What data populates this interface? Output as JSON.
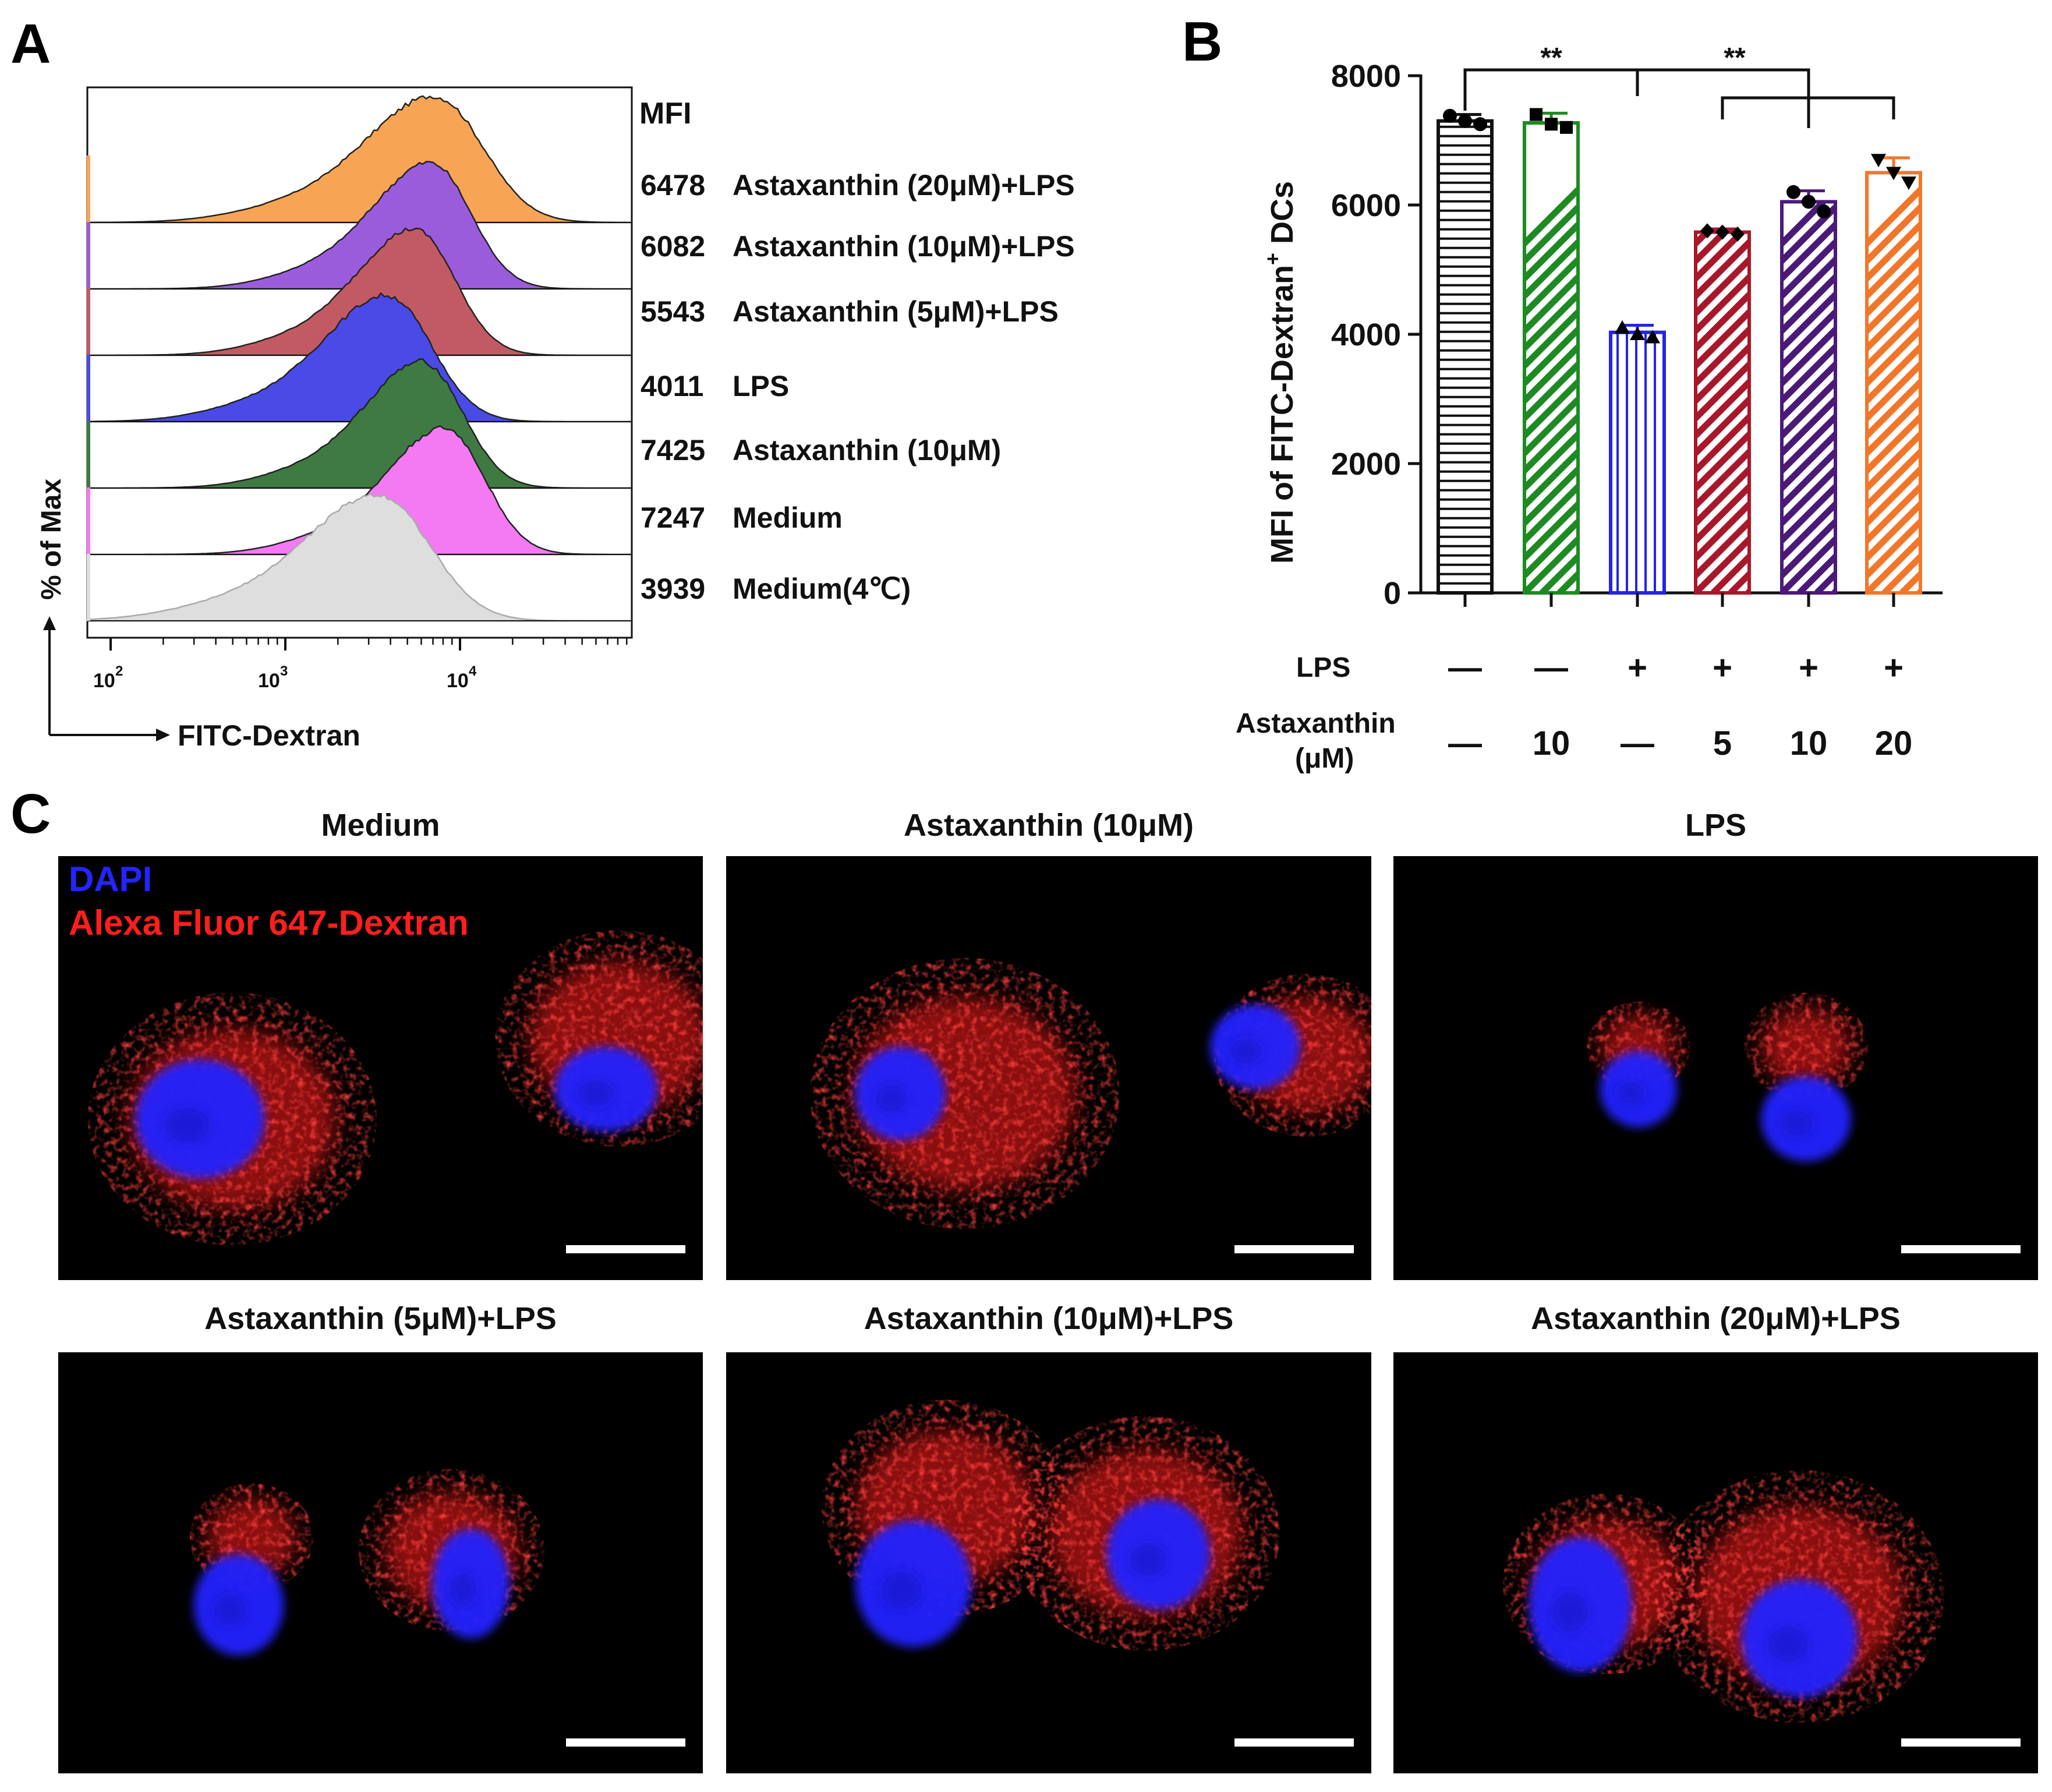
{
  "panels": {
    "a": "A",
    "b": "B",
    "c": "C"
  },
  "panel_a": {
    "mfi_header": "MFI",
    "y_axis_label": "% of Max",
    "x_axis_label": "FITC-Dextran",
    "x_ticks": [
      "2",
      "3",
      "4"
    ],
    "x_tick_base": "10",
    "rows": [
      {
        "mfi": "6478",
        "label": "Astaxanthin (20μM)+LPS",
        "color": "#f7a454"
      },
      {
        "mfi": "6082",
        "label": "Astaxanthin (10μM)+LPS",
        "color": "#9b5cdc"
      },
      {
        "mfi": "5543",
        "label": "Astaxanthin (5μM)+LPS",
        "color": "#c25a64"
      },
      {
        "mfi": "4011",
        "label": "LPS",
        "color": "#4a4ae6"
      },
      {
        "mfi": "7425",
        "label": "Astaxanthin (10μM)",
        "color": "#3f7a42"
      },
      {
        "mfi": "7247",
        "label": "Medium",
        "color": "#f37af3"
      },
      {
        "mfi": "3939",
        "label": "Medium(4℃)",
        "color": "#dedede"
      }
    ]
  },
  "chart_data": {
    "type": "bar",
    "title": "",
    "ylabel_main": "MFI of FITC-Dextran",
    "ylabel_sup": "+",
    "ylabel_tail": " DCs",
    "ylim": [
      0,
      8000
    ],
    "y_ticks": [
      0,
      2000,
      4000,
      6000,
      8000
    ],
    "values": [
      7300,
      7270,
      4030,
      5580,
      6050,
      6500
    ],
    "errors": [
      100,
      150,
      110,
      50,
      170,
      230
    ],
    "points": [
      [
        7380,
        7300,
        7250
      ],
      [
        7400,
        7250,
        7200
      ],
      [
        4100,
        4000,
        3950
      ],
      [
        5600,
        5580,
        5550
      ],
      [
        6200,
        6050,
        5900
      ],
      [
        6700,
        6500,
        6350
      ]
    ],
    "colors": [
      "#111111",
      "#1e8a23",
      "#2424e8",
      "#a8182a",
      "#4b1a78",
      "#f2762a"
    ],
    "patterns": [
      "horizontal",
      "diagonal",
      "vertical",
      "diagonal",
      "diagonal",
      "diagonal"
    ],
    "markers": [
      "circle",
      "square",
      "triangle",
      "diamond",
      "circle",
      "triangle-down"
    ],
    "significance": [
      "**",
      "**"
    ],
    "row_labels": [
      "LPS",
      "Astaxanthin",
      "(μM)"
    ],
    "lps": [
      "—",
      "—",
      "+",
      "+",
      "+",
      "+"
    ],
    "astaxanthin": [
      "—",
      "10",
      "—",
      "5",
      "10",
      "20"
    ]
  },
  "panel_c": {
    "legend_dapi": "DAPI",
    "legend_dextran": "Alexa Fluor 647-Dextran",
    "dapi_color": "#2222ff",
    "dextran_color": "#ff1a1a",
    "titles": [
      "Medium",
      "Astaxanthin (10μM)",
      "LPS",
      "Astaxanthin (5μM)+LPS",
      "Astaxanthin (10μM)+LPS",
      "Astaxanthin (20μM)+LPS"
    ]
  }
}
